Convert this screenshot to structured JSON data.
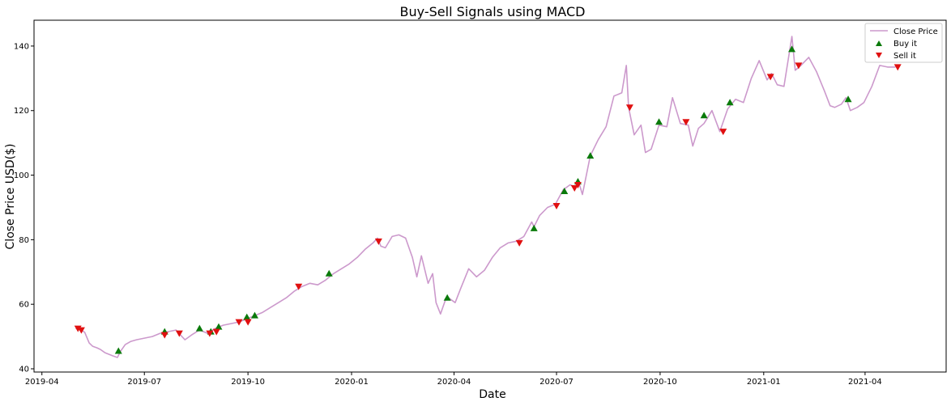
{
  "chart_data": {
    "type": "line",
    "title": "Buy-Sell Signals using MACD",
    "xlabel": "Date",
    "ylabel": "Close Price USD($)",
    "xlim": [
      "2019-03-25",
      "2021-06-12"
    ],
    "ylim": [
      39,
      148
    ],
    "x_ticks": [
      "2019-04-01",
      "2019-07-01",
      "2019-10-01",
      "2020-01-01",
      "2020-04-01",
      "2020-07-01",
      "2020-10-01",
      "2021-01-01",
      "2021-04-01"
    ],
    "x_tick_labels": [
      "2019-04",
      "2019-07",
      "2019-10",
      "2020-01",
      "2020-04",
      "2020-07",
      "2020-10",
      "2021-01",
      "2021-04"
    ],
    "y_ticks": [
      40,
      60,
      80,
      100,
      120,
      140
    ],
    "y_tick_labels": [
      "40",
      "60",
      "80",
      "100",
      "120",
      "140"
    ],
    "grid": false,
    "legend_position": "top-right",
    "series": [
      {
        "name": "Close Price",
        "kind": "line",
        "color": "#cc99cc",
        "points": [
          [
            "2019-05-01",
            52.5
          ],
          [
            "2019-05-06",
            52.0
          ],
          [
            "2019-05-09",
            51.3
          ],
          [
            "2019-05-13",
            48.0
          ],
          [
            "2019-05-16",
            47.0
          ],
          [
            "2019-05-20",
            46.5
          ],
          [
            "2019-05-23",
            46.0
          ],
          [
            "2019-05-27",
            45.0
          ],
          [
            "2019-06-03",
            44.0
          ],
          [
            "2019-06-07",
            43.5
          ],
          [
            "2019-06-10",
            45.5
          ],
          [
            "2019-06-14",
            47.5
          ],
          [
            "2019-06-19",
            48.5
          ],
          [
            "2019-06-24",
            49.0
          ],
          [
            "2019-07-01",
            49.5
          ],
          [
            "2019-07-08",
            50.0
          ],
          [
            "2019-07-15",
            51.0
          ],
          [
            "2019-07-22",
            51.5
          ],
          [
            "2019-07-29",
            52.0
          ],
          [
            "2019-08-02",
            50.5
          ],
          [
            "2019-08-06",
            49.0
          ],
          [
            "2019-08-12",
            50.5
          ],
          [
            "2019-08-19",
            52.0
          ],
          [
            "2019-08-26",
            51.0
          ],
          [
            "2019-09-02",
            52.5
          ],
          [
            "2019-09-09",
            53.5
          ],
          [
            "2019-09-16",
            54.0
          ],
          [
            "2019-09-23",
            54.5
          ],
          [
            "2019-09-30",
            55.5
          ],
          [
            "2019-10-07",
            56.5
          ],
          [
            "2019-10-14",
            57.5
          ],
          [
            "2019-10-21",
            59.0
          ],
          [
            "2019-10-28",
            60.5
          ],
          [
            "2019-11-04",
            62.0
          ],
          [
            "2019-11-11",
            64.0
          ],
          [
            "2019-11-18",
            65.5
          ],
          [
            "2019-11-25",
            66.5
          ],
          [
            "2019-12-02",
            66.0
          ],
          [
            "2019-12-09",
            67.5
          ],
          [
            "2019-12-16",
            69.5
          ],
          [
            "2019-12-23",
            71.0
          ],
          [
            "2019-12-30",
            72.5
          ],
          [
            "2020-01-06",
            74.5
          ],
          [
            "2020-01-13",
            77.0
          ],
          [
            "2020-01-20",
            79.0
          ],
          [
            "2020-01-24",
            80.5
          ],
          [
            "2020-01-27",
            78.0
          ],
          [
            "2020-01-31",
            77.5
          ],
          [
            "2020-02-06",
            81.0
          ],
          [
            "2020-02-12",
            81.5
          ],
          [
            "2020-02-18",
            80.5
          ],
          [
            "2020-02-24",
            74.5
          ],
          [
            "2020-02-28",
            68.5
          ],
          [
            "2020-03-03",
            75.0
          ],
          [
            "2020-03-09",
            66.5
          ],
          [
            "2020-03-13",
            69.5
          ],
          [
            "2020-03-16",
            60.5
          ],
          [
            "2020-03-20",
            57.0
          ],
          [
            "2020-03-24",
            61.0
          ],
          [
            "2020-03-27",
            62.0
          ],
          [
            "2020-04-02",
            60.5
          ],
          [
            "2020-04-07",
            65.0
          ],
          [
            "2020-04-14",
            71.0
          ],
          [
            "2020-04-21",
            68.5
          ],
          [
            "2020-04-28",
            70.5
          ],
          [
            "2020-05-05",
            74.5
          ],
          [
            "2020-05-12",
            77.5
          ],
          [
            "2020-05-19",
            79.0
          ],
          [
            "2020-05-26",
            79.5
          ],
          [
            "2020-06-02",
            81.0
          ],
          [
            "2020-06-09",
            85.5
          ],
          [
            "2020-06-11",
            84.0
          ],
          [
            "2020-06-16",
            87.5
          ],
          [
            "2020-06-23",
            90.0
          ],
          [
            "2020-06-30",
            91.0
          ],
          [
            "2020-07-07",
            95.5
          ],
          [
            "2020-07-13",
            97.0
          ],
          [
            "2020-07-17",
            96.5
          ],
          [
            "2020-07-21",
            97.5
          ],
          [
            "2020-07-24",
            94.0
          ],
          [
            "2020-07-31",
            106.0
          ],
          [
            "2020-08-07",
            111.0
          ],
          [
            "2020-08-14",
            115.0
          ],
          [
            "2020-08-21",
            124.5
          ],
          [
            "2020-08-28",
            125.5
          ],
          [
            "2020-09-01",
            134.0
          ],
          [
            "2020-09-03",
            121.0
          ],
          [
            "2020-09-08",
            112.5
          ],
          [
            "2020-09-14",
            115.5
          ],
          [
            "2020-09-18",
            107.0
          ],
          [
            "2020-09-23",
            108.0
          ],
          [
            "2020-09-30",
            115.5
          ],
          [
            "2020-10-07",
            115.0
          ],
          [
            "2020-10-12",
            124.0
          ],
          [
            "2020-10-19",
            116.0
          ],
          [
            "2020-10-26",
            115.5
          ],
          [
            "2020-10-30",
            109.0
          ],
          [
            "2020-11-04",
            114.5
          ],
          [
            "2020-11-09",
            116.0
          ],
          [
            "2020-11-16",
            120.0
          ],
          [
            "2020-11-23",
            113.5
          ],
          [
            "2020-11-30",
            120.5
          ],
          [
            "2020-12-07",
            123.5
          ],
          [
            "2020-12-14",
            122.5
          ],
          [
            "2020-12-21",
            130.0
          ],
          [
            "2020-12-28",
            135.5
          ],
          [
            "2021-01-04",
            129.5
          ],
          [
            "2021-01-08",
            131.5
          ],
          [
            "2021-01-13",
            128.0
          ],
          [
            "2021-01-19",
            127.5
          ],
          [
            "2021-01-26",
            143.0
          ],
          [
            "2021-01-29",
            132.5
          ],
          [
            "2021-02-03",
            134.0
          ],
          [
            "2021-02-10",
            136.5
          ],
          [
            "2021-02-17",
            132.0
          ],
          [
            "2021-02-24",
            126.0
          ],
          [
            "2021-03-01",
            121.5
          ],
          [
            "2021-03-05",
            121.0
          ],
          [
            "2021-03-11",
            122.0
          ],
          [
            "2021-03-15",
            124.0
          ],
          [
            "2021-03-19",
            120.0
          ],
          [
            "2021-03-25",
            121.0
          ],
          [
            "2021-03-31",
            122.5
          ],
          [
            "2021-04-07",
            127.5
          ],
          [
            "2021-04-14",
            134.0
          ],
          [
            "2021-04-21",
            133.5
          ],
          [
            "2021-04-28",
            133.5
          ]
        ]
      },
      {
        "name": "Buy it",
        "kind": "marker",
        "marker": "triangle-up",
        "color": "#0a7a0a",
        "points": [
          [
            "2019-06-08",
            45.5
          ],
          [
            "2019-07-19",
            51.5
          ],
          [
            "2019-08-19",
            52.5
          ],
          [
            "2019-08-29",
            51.5
          ],
          [
            "2019-09-05",
            53.0
          ],
          [
            "2019-09-30",
            56.0
          ],
          [
            "2019-10-07",
            56.5
          ],
          [
            "2019-12-12",
            69.5
          ],
          [
            "2020-03-26",
            62.0
          ],
          [
            "2020-06-11",
            83.5
          ],
          [
            "2020-07-08",
            95.0
          ],
          [
            "2020-07-20",
            98.0
          ],
          [
            "2020-07-31",
            106.0
          ],
          [
            "2020-09-30",
            116.5
          ],
          [
            "2020-11-09",
            118.5
          ],
          [
            "2020-12-02",
            122.5
          ],
          [
            "2021-01-26",
            139.0
          ],
          [
            "2021-03-17",
            123.5
          ]
        ]
      },
      {
        "name": "Sell it",
        "kind": "marker",
        "marker": "triangle-down",
        "color": "#e01010",
        "points": [
          [
            "2019-05-03",
            52.5
          ],
          [
            "2019-05-06",
            52.0
          ],
          [
            "2019-07-19",
            50.5
          ],
          [
            "2019-08-01",
            51.0
          ],
          [
            "2019-08-28",
            51.0
          ],
          [
            "2019-09-03",
            51.5
          ],
          [
            "2019-09-23",
            54.5
          ],
          [
            "2019-10-01",
            54.5
          ],
          [
            "2019-11-15",
            65.5
          ],
          [
            "2020-01-25",
            79.5
          ],
          [
            "2020-05-29",
            79.0
          ],
          [
            "2020-07-01",
            90.5
          ],
          [
            "2020-07-17",
            96.0
          ],
          [
            "2020-07-20",
            97.0
          ],
          [
            "2020-09-04",
            121.0
          ],
          [
            "2020-10-24",
            116.5
          ],
          [
            "2020-11-26",
            113.5
          ],
          [
            "2021-01-07",
            130.5
          ],
          [
            "2021-02-01",
            134.0
          ],
          [
            "2021-04-30",
            133.5
          ]
        ]
      }
    ]
  }
}
